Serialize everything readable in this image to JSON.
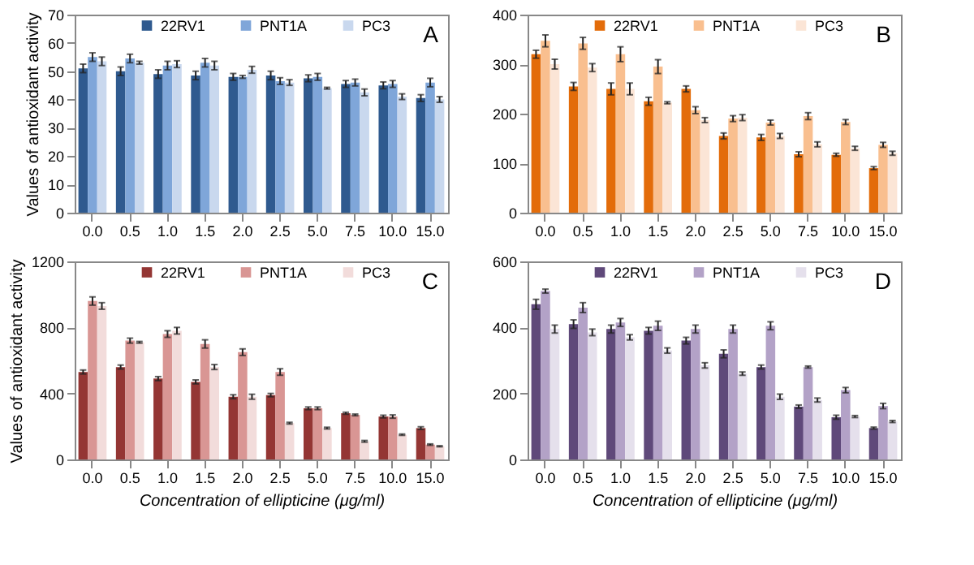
{
  "chart_data": [
    {
      "type": "bar",
      "ylabel": "Values of antioxidant activity",
      "annotations": [
        "A"
      ],
      "categories": [
        "0.0",
        "0.5",
        "1.0",
        "1.5",
        "2.0",
        "2.5",
        "5.0",
        "7.5",
        "10.0",
        "15.0"
      ],
      "ylim": [
        0,
        70
      ],
      "yticks": [
        0,
        10,
        20,
        30,
        40,
        50,
        60,
        70
      ],
      "legend": "top",
      "grid": false,
      "series": [
        {
          "name": "22RV1",
          "color": "#2f5a8f",
          "values": [
            51,
            50,
            49,
            48.5,
            48,
            48.5,
            47.5,
            45.5,
            45,
            40.5
          ],
          "errors": [
            1.5,
            1.5,
            1.5,
            1.5,
            1.2,
            1.5,
            1.2,
            1.2,
            1.2,
            1.2
          ]
        },
        {
          "name": "PNT1A",
          "color": "#7fa6d9",
          "values": [
            55,
            54.5,
            52,
            53,
            48,
            46.5,
            48,
            46,
            45.5,
            46
          ],
          "errors": [
            1.5,
            1.5,
            1.5,
            1.5,
            0.5,
            1.2,
            1.2,
            1.2,
            1.2,
            1.5
          ]
        },
        {
          "name": "PC3",
          "color": "#c9d8ee",
          "values": [
            53.5,
            53,
            52.5,
            52,
            50.5,
            46,
            44,
            42.5,
            41,
            40
          ],
          "errors": [
            1.5,
            0.5,
            1.2,
            1.5,
            1.2,
            1,
            0.3,
            1.2,
            1,
            1
          ]
        }
      ]
    },
    {
      "type": "bar",
      "annotations": [
        "B"
      ],
      "categories": [
        "0.0",
        "0.5",
        "1.0",
        "1.5",
        "2.0",
        "2.5",
        "5.0",
        "7.5",
        "10.0",
        "15.0"
      ],
      "ylim": [
        0,
        400
      ],
      "yticks": [
        0,
        100,
        200,
        300,
        400
      ],
      "legend": "top",
      "grid": false,
      "series": [
        {
          "name": "22RV1",
          "color": "#e36c0a",
          "values": [
            320,
            255,
            250,
            225,
            250,
            155,
            152,
            118,
            117,
            90
          ],
          "errors": [
            8,
            8,
            12,
            8,
            6,
            6,
            6,
            5,
            3,
            3
          ]
        },
        {
          "name": "PNT1A",
          "color": "#f9bf8f",
          "values": [
            347,
            342,
            320,
            295,
            207,
            190,
            182,
            195,
            183,
            137
          ],
          "errors": [
            12,
            12,
            15,
            14,
            7,
            6,
            5,
            7,
            5,
            5
          ]
        },
        {
          "name": "PC3",
          "color": "#fbe5d6",
          "values": [
            300,
            293,
            250,
            222,
            187,
            192,
            155,
            138,
            130,
            120
          ],
          "errors": [
            10,
            8,
            12,
            2,
            5,
            6,
            5,
            5,
            4,
            4
          ]
        }
      ]
    },
    {
      "type": "bar",
      "ylabel": "Values of antioxidant activity",
      "xlabel": "Concentration of ellipticine (μg/ml)",
      "annotations": [
        "C"
      ],
      "categories": [
        "0.0",
        "0.5",
        "1.0",
        "1.5",
        "2.0",
        "2.5",
        "5.0",
        "7.5",
        "10.0",
        "15.0"
      ],
      "ylim": [
        0,
        1200
      ],
      "yticks": [
        0,
        400,
        800,
        1200
      ],
      "legend": "top",
      "grid": false,
      "series": [
        {
          "name": "22RV1",
          "color": "#943634",
          "values": [
            530,
            560,
            490,
            470,
            380,
            390,
            310,
            280,
            260,
            190
          ],
          "errors": [
            12,
            12,
            12,
            12,
            12,
            10,
            8,
            6,
            8,
            8
          ]
        },
        {
          "name": "PNT1A",
          "color": "#d99694",
          "values": [
            960,
            720,
            760,
            700,
            650,
            530,
            310,
            270,
            260,
            90
          ],
          "errors": [
            25,
            15,
            20,
            25,
            20,
            20,
            8,
            5,
            10,
            4
          ]
        },
        {
          "name": "PC3",
          "color": "#f2dcdb",
          "values": [
            930,
            710,
            780,
            560,
            380,
            220,
            190,
            110,
            150,
            80
          ],
          "errors": [
            20,
            5,
            20,
            15,
            15,
            5,
            5,
            5,
            4,
            3
          ]
        }
      ]
    },
    {
      "type": "bar",
      "xlabel": "Concentration of ellipticine (μg/ml)",
      "annotations": [
        "D"
      ],
      "categories": [
        "0.0",
        "0.5",
        "1.0",
        "1.5",
        "2.0",
        "2.5",
        "5.0",
        "7.5",
        "10.0",
        "15.0"
      ],
      "ylim": [
        0,
        600
      ],
      "yticks": [
        0,
        200,
        400,
        600
      ],
      "legend": "top",
      "grid": false,
      "series": [
        {
          "name": "22RV1",
          "color": "#5f497a",
          "values": [
            470,
            410,
            395,
            390,
            360,
            320,
            280,
            160,
            128,
            95
          ],
          "errors": [
            15,
            13,
            12,
            10,
            10,
            12,
            6,
            5,
            6,
            3
          ]
        },
        {
          "name": "PNT1A",
          "color": "#b3a2c7",
          "values": [
            510,
            460,
            415,
            405,
            395,
            395,
            405,
            280,
            210,
            162
          ],
          "errors": [
            6,
            15,
            12,
            14,
            12,
            12,
            12,
            3,
            8,
            8
          ]
        },
        {
          "name": "PC3",
          "color": "#e5e0ec",
          "values": [
            395,
            385,
            370,
            330,
            285,
            260,
            190,
            180,
            130,
            115
          ],
          "errors": [
            12,
            10,
            8,
            8,
            8,
            5,
            8,
            6,
            3,
            3
          ]
        }
      ]
    }
  ]
}
